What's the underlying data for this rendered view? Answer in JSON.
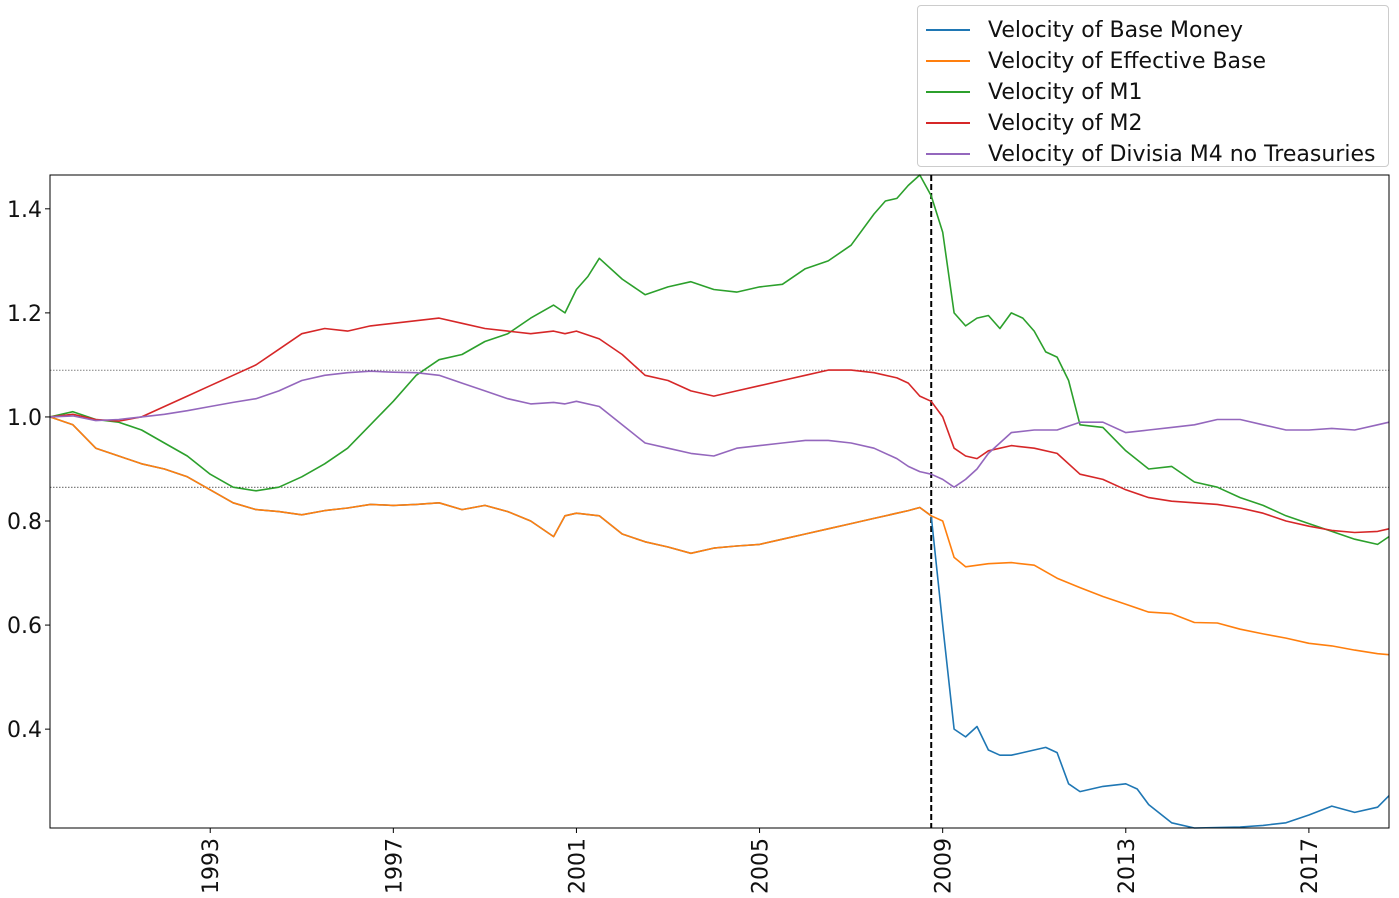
{
  "chart_data": {
    "type": "line",
    "title": "",
    "xlabel": "",
    "ylabel": "",
    "xlim": [
      1989.5,
      2018.75
    ],
    "ylim": [
      0.21,
      1.465
    ],
    "yticks": [
      0.4,
      0.6,
      0.8,
      1.0,
      1.2,
      1.4
    ],
    "ytick_labels": [
      "0.4",
      "0.6",
      "0.8",
      "1.0",
      "1.2",
      "1.4"
    ],
    "xticks": [
      1993,
      1997,
      2001,
      2005,
      2009,
      2013,
      2017
    ],
    "xtick_labels": [
      "1993",
      "1997",
      "2001",
      "2005",
      "2009",
      "2013",
      "2017"
    ],
    "reference_hlines": [
      1.09,
      0.865
    ],
    "reference_vline": 2008.75,
    "legend_position": "top-right, above plot",
    "series": [
      {
        "name": "Velocity of Base Money",
        "color": "#1f77b4",
        "x": [
          1989.5,
          1990.0,
          1990.5,
          1991.0,
          1991.5,
          1992.0,
          1992.5,
          1993.0,
          1993.5,
          1994.0,
          1994.5,
          1995.0,
          1995.5,
          1996.0,
          1996.5,
          1997.0,
          1997.5,
          1998.0,
          1998.5,
          1999.0,
          1999.5,
          2000.0,
          2000.5,
          2000.75,
          2001.0,
          2001.5,
          2002.0,
          2002.5,
          2003.0,
          2003.5,
          2004.0,
          2004.5,
          2005.0,
          2005.5,
          2006.0,
          2006.5,
          2007.0,
          2007.5,
          2008.0,
          2008.25,
          2008.5,
          2008.75,
          2009.0,
          2009.25,
          2009.5,
          2009.75,
          2010.0,
          2010.25,
          2010.5,
          2010.75,
          2011.0,
          2011.25,
          2011.5,
          2011.75,
          2012.0,
          2012.5,
          2013.0,
          2013.25,
          2013.5,
          2014.0,
          2014.5,
          2015.0,
          2015.5,
          2016.0,
          2016.5,
          2017.0,
          2017.5,
          2018.0,
          2018.5,
          2018.75
        ],
        "y": [
          1.0,
          0.985,
          0.94,
          0.925,
          0.91,
          0.9,
          0.885,
          0.86,
          0.835,
          0.822,
          0.818,
          0.812,
          0.82,
          0.825,
          0.832,
          0.83,
          0.832,
          0.835,
          0.822,
          0.83,
          0.818,
          0.8,
          0.77,
          0.81,
          0.815,
          0.81,
          0.775,
          0.76,
          0.75,
          0.738,
          0.748,
          0.752,
          0.755,
          0.765,
          0.775,
          0.785,
          0.795,
          0.805,
          0.815,
          0.82,
          0.826,
          0.81,
          0.6,
          0.4,
          0.385,
          0.405,
          0.36,
          0.35,
          0.35,
          0.355,
          0.36,
          0.365,
          0.355,
          0.295,
          0.28,
          0.29,
          0.295,
          0.285,
          0.255,
          0.22,
          0.21,
          0.211,
          0.212,
          0.215,
          0.22,
          0.235,
          0.252,
          0.24,
          0.25,
          0.272
        ]
      },
      {
        "name": "Velocity of Effective Base",
        "color": "#ff7f0e",
        "x": [
          1989.5,
          1990.0,
          1990.5,
          1991.0,
          1991.5,
          1992.0,
          1992.5,
          1993.0,
          1993.5,
          1994.0,
          1994.5,
          1995.0,
          1995.5,
          1996.0,
          1996.5,
          1997.0,
          1997.5,
          1998.0,
          1998.5,
          1999.0,
          1999.5,
          2000.0,
          2000.5,
          2000.75,
          2001.0,
          2001.5,
          2002.0,
          2002.5,
          2003.0,
          2003.5,
          2004.0,
          2004.5,
          2005.0,
          2005.5,
          2006.0,
          2006.5,
          2007.0,
          2007.5,
          2008.0,
          2008.25,
          2008.5,
          2008.75,
          2009.0,
          2009.25,
          2009.5,
          2010.0,
          2010.5,
          2011.0,
          2011.5,
          2012.0,
          2012.5,
          2013.0,
          2013.5,
          2014.0,
          2014.5,
          2015.0,
          2015.5,
          2016.0,
          2016.5,
          2017.0,
          2017.5,
          2018.0,
          2018.5,
          2018.75
        ],
        "y": [
          1.0,
          0.985,
          0.94,
          0.925,
          0.91,
          0.9,
          0.885,
          0.86,
          0.835,
          0.822,
          0.818,
          0.812,
          0.82,
          0.825,
          0.832,
          0.83,
          0.832,
          0.835,
          0.822,
          0.83,
          0.818,
          0.8,
          0.77,
          0.81,
          0.815,
          0.81,
          0.775,
          0.76,
          0.75,
          0.738,
          0.748,
          0.752,
          0.755,
          0.765,
          0.775,
          0.785,
          0.795,
          0.805,
          0.815,
          0.82,
          0.826,
          0.81,
          0.8,
          0.73,
          0.712,
          0.718,
          0.72,
          0.715,
          0.69,
          0.672,
          0.655,
          0.64,
          0.625,
          0.622,
          0.605,
          0.604,
          0.592,
          0.583,
          0.575,
          0.565,
          0.56,
          0.552,
          0.545,
          0.543
        ]
      },
      {
        "name": "Velocity of M1",
        "color": "#2ca02c",
        "x": [
          1989.5,
          1990.0,
          1990.5,
          1991.0,
          1991.5,
          1992.0,
          1992.5,
          1993.0,
          1993.5,
          1994.0,
          1994.5,
          1995.0,
          1995.5,
          1996.0,
          1996.5,
          1997.0,
          1997.5,
          1998.0,
          1998.5,
          1999.0,
          1999.5,
          2000.0,
          2000.5,
          2000.75,
          2001.0,
          2001.25,
          2001.5,
          2002.0,
          2002.5,
          2003.0,
          2003.5,
          2004.0,
          2004.5,
          2005.0,
          2005.5,
          2006.0,
          2006.5,
          2007.0,
          2007.5,
          2007.75,
          2008.0,
          2008.25,
          2008.5,
          2008.75,
          2009.0,
          2009.25,
          2009.5,
          2009.75,
          2010.0,
          2010.25,
          2010.5,
          2010.75,
          2011.0,
          2011.25,
          2011.5,
          2011.75,
          2012.0,
          2012.5,
          2013.0,
          2013.5,
          2014.0,
          2014.5,
          2015.0,
          2015.5,
          2016.0,
          2016.5,
          2017.0,
          2017.5,
          2018.0,
          2018.5,
          2018.75
        ],
        "y": [
          1.0,
          1.01,
          0.995,
          0.99,
          0.975,
          0.95,
          0.925,
          0.89,
          0.865,
          0.858,
          0.865,
          0.885,
          0.91,
          0.94,
          0.985,
          1.03,
          1.08,
          1.11,
          1.12,
          1.145,
          1.16,
          1.19,
          1.215,
          1.2,
          1.245,
          1.27,
          1.305,
          1.265,
          1.235,
          1.25,
          1.26,
          1.245,
          1.24,
          1.25,
          1.255,
          1.285,
          1.3,
          1.33,
          1.39,
          1.415,
          1.42,
          1.445,
          1.465,
          1.425,
          1.355,
          1.2,
          1.175,
          1.19,
          1.195,
          1.17,
          1.2,
          1.19,
          1.165,
          1.125,
          1.115,
          1.07,
          0.985,
          0.98,
          0.935,
          0.9,
          0.905,
          0.875,
          0.865,
          0.845,
          0.83,
          0.81,
          0.795,
          0.78,
          0.765,
          0.755,
          0.77
        ]
      },
      {
        "name": "Velocity of M2",
        "color": "#d62728",
        "x": [
          1989.5,
          1990.0,
          1990.5,
          1991.0,
          1991.5,
          1992.0,
          1992.5,
          1993.0,
          1993.5,
          1994.0,
          1994.5,
          1995.0,
          1995.5,
          1996.0,
          1996.5,
          1997.0,
          1997.5,
          1998.0,
          1998.5,
          1999.0,
          1999.5,
          2000.0,
          2000.5,
          2000.75,
          2001.0,
          2001.5,
          2002.0,
          2002.5,
          2003.0,
          2003.5,
          2004.0,
          2004.5,
          2005.0,
          2005.5,
          2006.0,
          2006.5,
          2007.0,
          2007.5,
          2008.0,
          2008.25,
          2008.5,
          2008.75,
          2009.0,
          2009.25,
          2009.5,
          2009.75,
          2010.0,
          2010.5,
          2011.0,
          2011.5,
          2012.0,
          2012.5,
          2013.0,
          2013.5,
          2014.0,
          2014.5,
          2015.0,
          2015.5,
          2016.0,
          2016.5,
          2017.0,
          2017.5,
          2018.0,
          2018.5,
          2018.75
        ],
        "y": [
          1.0,
          1.005,
          0.995,
          0.992,
          1.0,
          1.02,
          1.04,
          1.06,
          1.08,
          1.1,
          1.13,
          1.16,
          1.17,
          1.165,
          1.175,
          1.18,
          1.185,
          1.19,
          1.18,
          1.17,
          1.165,
          1.16,
          1.165,
          1.16,
          1.165,
          1.15,
          1.12,
          1.08,
          1.07,
          1.05,
          1.04,
          1.05,
          1.06,
          1.07,
          1.08,
          1.09,
          1.09,
          1.085,
          1.075,
          1.065,
          1.04,
          1.03,
          1.0,
          0.94,
          0.925,
          0.92,
          0.935,
          0.945,
          0.94,
          0.93,
          0.89,
          0.88,
          0.86,
          0.845,
          0.838,
          0.835,
          0.832,
          0.825,
          0.815,
          0.8,
          0.79,
          0.782,
          0.778,
          0.78,
          0.785
        ]
      },
      {
        "name": "Velocity of Divisia M4 no Treasuries",
        "color": "#9467bd",
        "x": [
          1989.5,
          1990.0,
          1990.5,
          1991.0,
          1991.5,
          1992.0,
          1992.5,
          1993.0,
          1993.5,
          1994.0,
          1994.5,
          1995.0,
          1995.5,
          1996.0,
          1996.5,
          1997.0,
          1997.5,
          1998.0,
          1998.5,
          1999.0,
          1999.5,
          2000.0,
          2000.5,
          2000.75,
          2001.0,
          2001.5,
          2002.0,
          2002.5,
          2003.0,
          2003.5,
          2004.0,
          2004.5,
          2005.0,
          2005.5,
          2006.0,
          2006.5,
          2007.0,
          2007.5,
          2008.0,
          2008.25,
          2008.5,
          2008.75,
          2009.0,
          2009.25,
          2009.5,
          2009.75,
          2010.0,
          2010.5,
          2011.0,
          2011.5,
          2012.0,
          2012.5,
          2013.0,
          2013.5,
          2014.0,
          2014.5,
          2015.0,
          2015.5,
          2016.0,
          2016.5,
          2017.0,
          2017.5,
          2018.0,
          2018.5,
          2018.75
        ],
        "y": [
          1.0,
          1.002,
          0.993,
          0.995,
          1.0,
          1.005,
          1.012,
          1.02,
          1.028,
          1.035,
          1.05,
          1.07,
          1.08,
          1.085,
          1.088,
          1.086,
          1.085,
          1.08,
          1.065,
          1.05,
          1.035,
          1.025,
          1.028,
          1.025,
          1.03,
          1.02,
          0.985,
          0.95,
          0.94,
          0.93,
          0.925,
          0.94,
          0.945,
          0.95,
          0.955,
          0.955,
          0.95,
          0.94,
          0.92,
          0.905,
          0.895,
          0.89,
          0.88,
          0.865,
          0.88,
          0.9,
          0.93,
          0.97,
          0.975,
          0.975,
          0.99,
          0.99,
          0.97,
          0.975,
          0.98,
          0.985,
          0.995,
          0.995,
          0.985,
          0.975,
          0.975,
          0.978,
          0.975,
          0.985,
          0.99
        ]
      }
    ]
  }
}
